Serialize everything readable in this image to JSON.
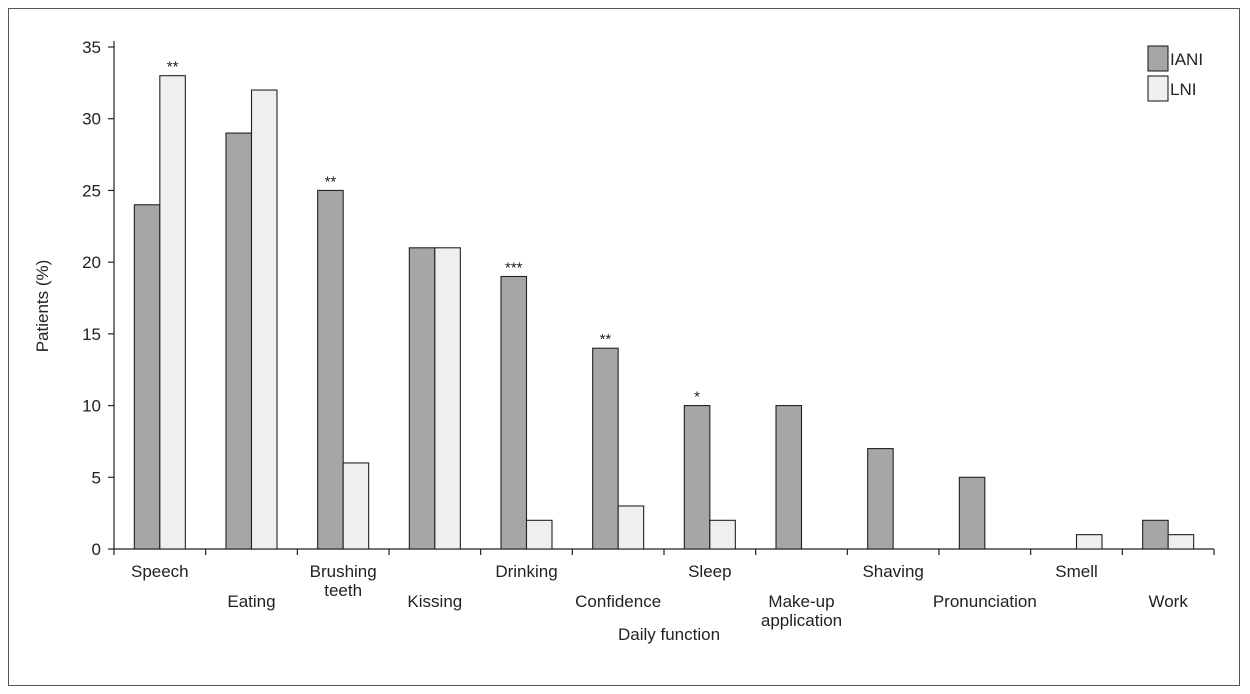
{
  "chart_data": {
    "type": "bar",
    "xlabel": "Daily function",
    "ylabel": "Patients (%)",
    "ylim": [
      0,
      35
    ],
    "yticks": [
      0,
      5,
      10,
      15,
      20,
      25,
      30,
      35
    ],
    "categories": [
      {
        "lines": [
          "Speech"
        ],
        "row": 1
      },
      {
        "lines": [
          "Eating"
        ],
        "row": 2
      },
      {
        "lines": [
          "Brushing",
          "teeth"
        ],
        "row": 1
      },
      {
        "lines": [
          "Kissing"
        ],
        "row": 2
      },
      {
        "lines": [
          "Drinking"
        ],
        "row": 1
      },
      {
        "lines": [
          "Confidence"
        ],
        "row": 2
      },
      {
        "lines": [
          "Sleep"
        ],
        "row": 1
      },
      {
        "lines": [
          "Make-up",
          "application"
        ],
        "row": 2
      },
      {
        "lines": [
          "Shaving"
        ],
        "row": 1
      },
      {
        "lines": [
          "Pronunciation"
        ],
        "row": 2
      },
      {
        "lines": [
          "Smell"
        ],
        "row": 1
      },
      {
        "lines": [
          "Work"
        ],
        "row": 2
      }
    ],
    "series": [
      {
        "name": "IANI",
        "color": "#a6a6a6",
        "values": [
          24,
          29,
          25,
          21,
          19,
          14,
          10,
          10,
          7,
          5,
          0,
          2
        ]
      },
      {
        "name": "LNI",
        "color": "#efefef",
        "values": [
          33,
          32,
          6,
          21,
          2,
          3,
          2,
          0,
          0,
          0,
          1,
          1
        ]
      }
    ],
    "annotations": [
      {
        "category_index": 0,
        "series": "LNI",
        "text": "**"
      },
      {
        "category_index": 2,
        "series": "IANI",
        "text": "**"
      },
      {
        "category_index": 4,
        "series": "IANI",
        "text": "***"
      },
      {
        "category_index": 5,
        "series": "IANI",
        "text": "**"
      },
      {
        "category_index": 6,
        "series": "IANI",
        "text": "*"
      }
    ],
    "legend_position": "top-right",
    "grid": false
  }
}
